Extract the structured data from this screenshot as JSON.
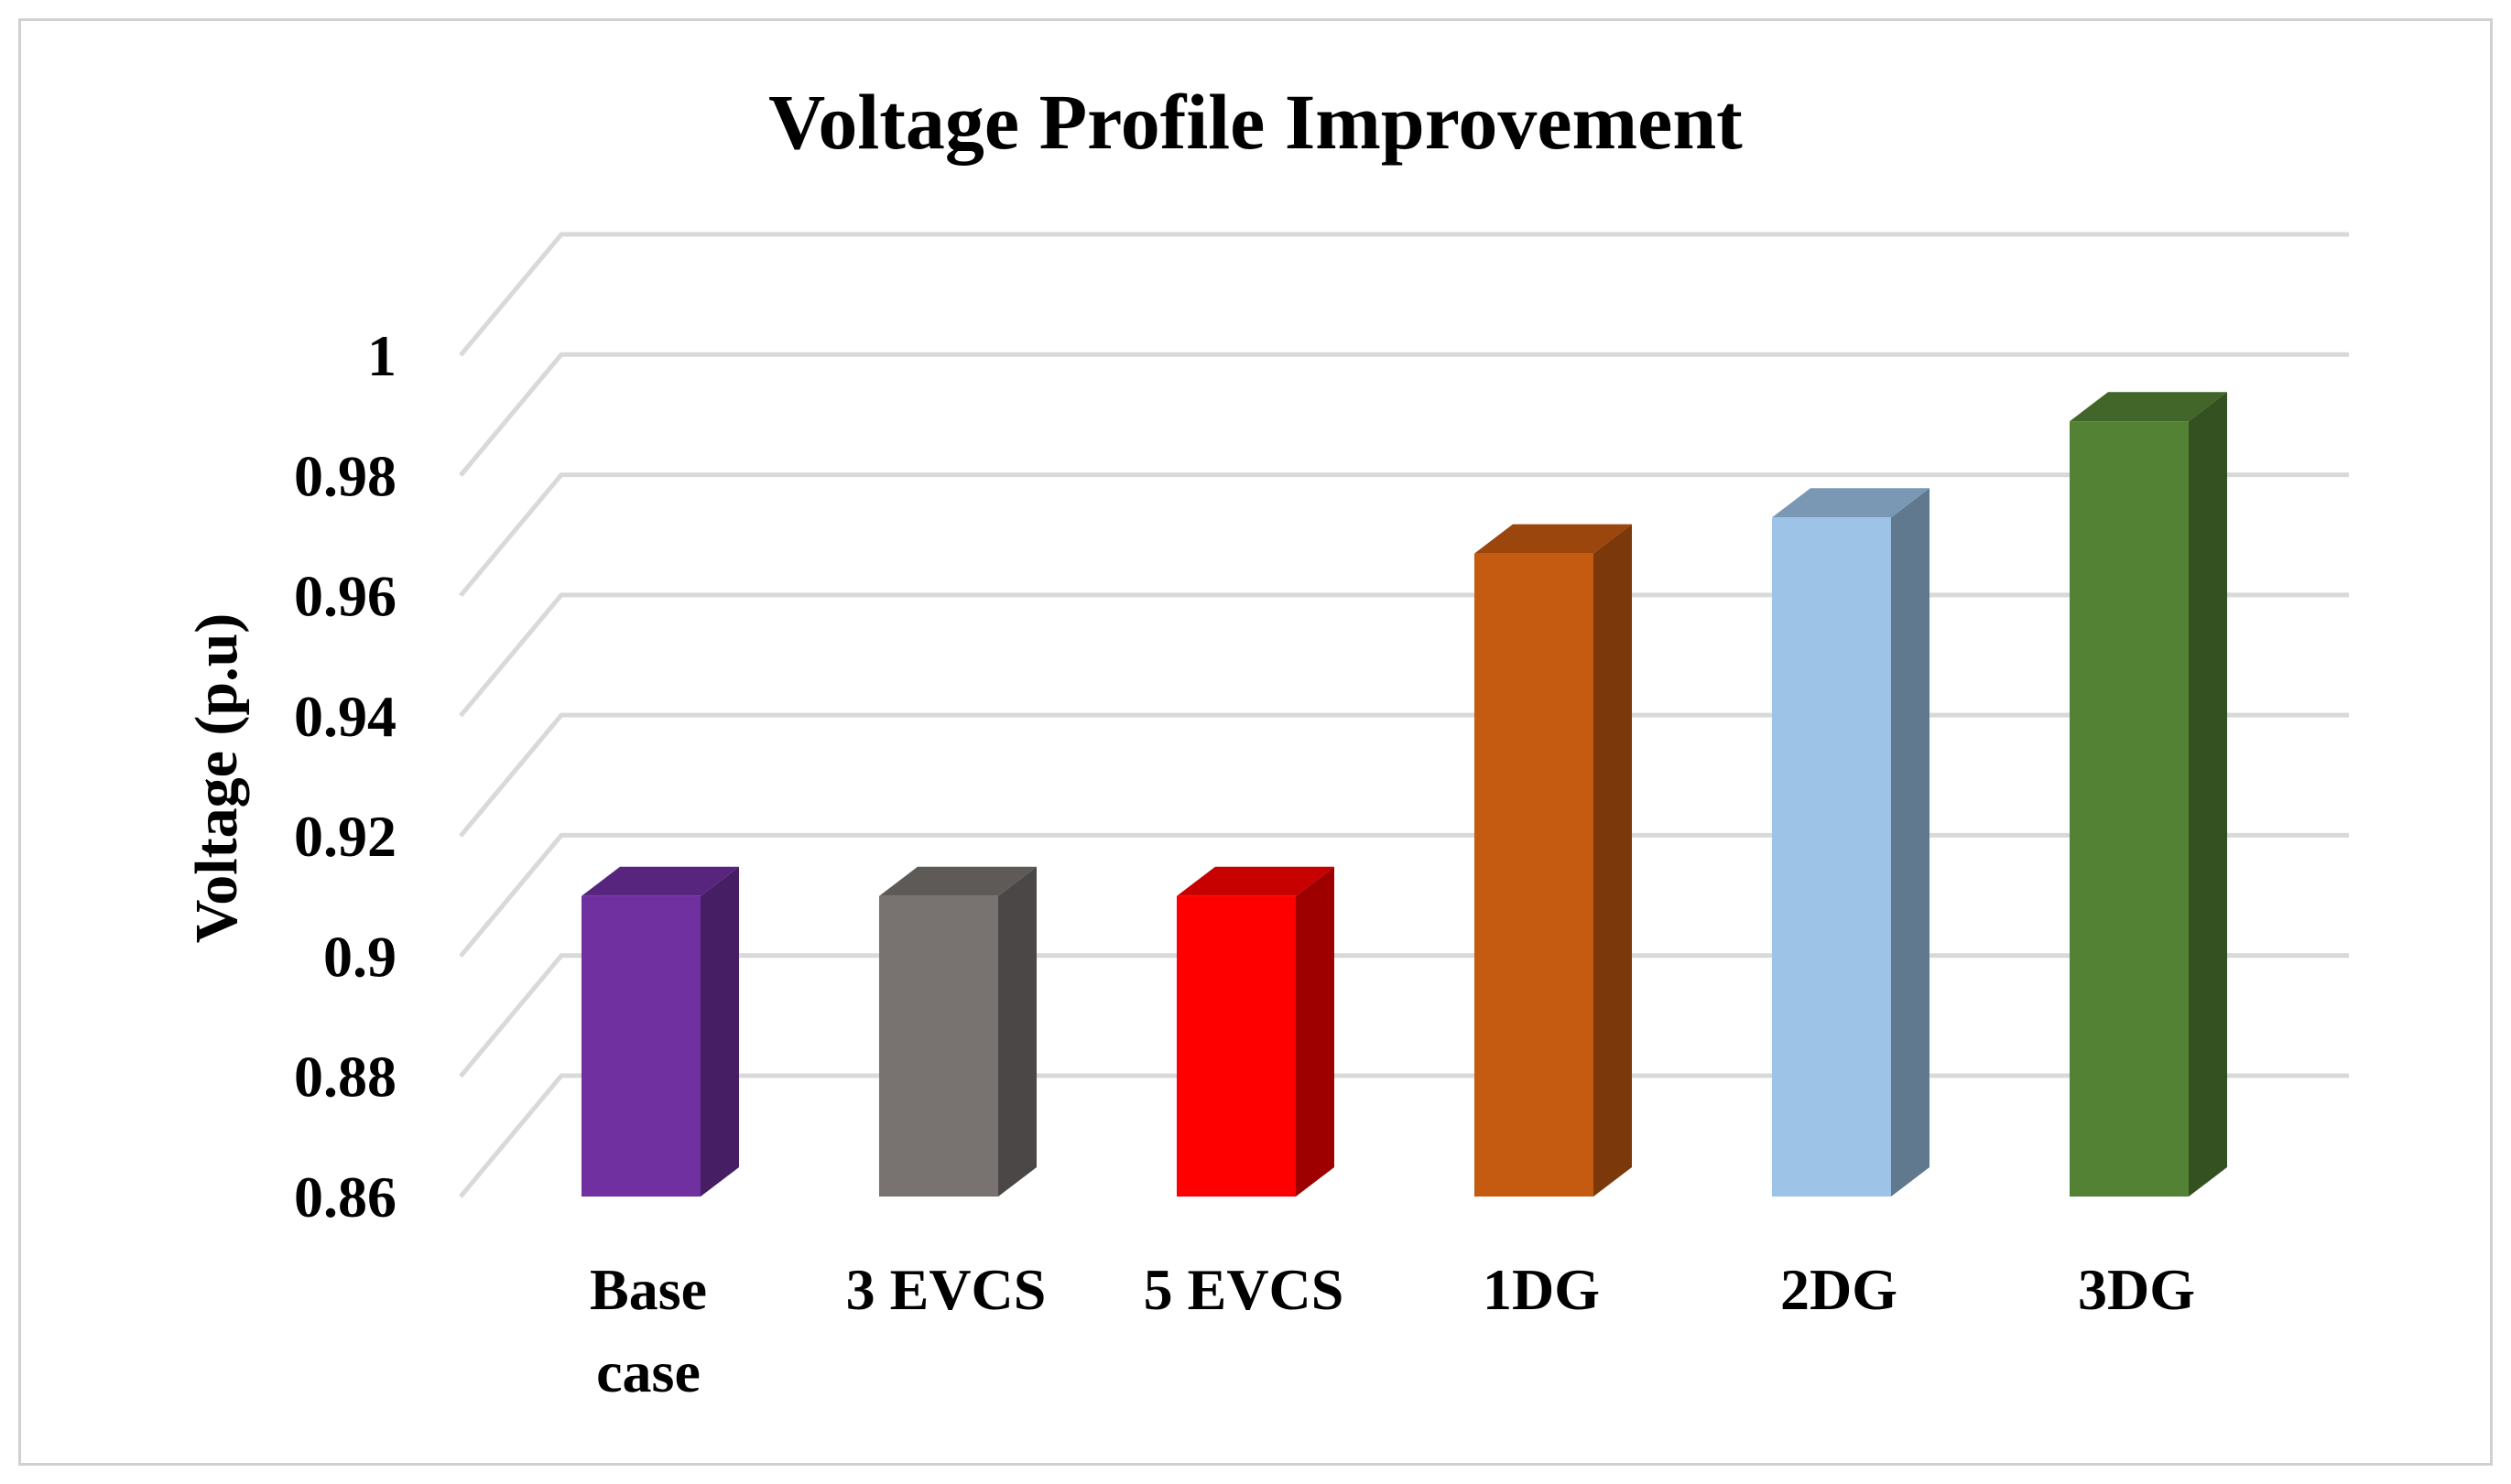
{
  "chart_data": {
    "type": "bar",
    "title": "Voltage Profile Improvement",
    "xlabel": "",
    "ylabel": "Voltage (p.u)",
    "ylim": [
      0.86,
      1.0
    ],
    "yticks": [
      "0.86",
      "0.88",
      "0.9",
      "0.92",
      "0.94",
      "0.96",
      "0.98",
      "1"
    ],
    "yticks_values": [
      0.86,
      0.88,
      0.9,
      0.92,
      0.94,
      0.96,
      0.98,
      1.0
    ],
    "grid": true,
    "style": "3d-column",
    "categories": [
      [
        "Base",
        "case"
      ],
      [
        "3 EVCS"
      ],
      [
        "5 EVCS"
      ],
      [
        "1DG"
      ],
      [
        "2DG"
      ],
      [
        "3DG"
      ]
    ],
    "values": [
      0.91,
      0.91,
      0.91,
      0.967,
      0.973,
      0.989
    ],
    "colors": [
      "#7030a0",
      "#787371",
      "#ff0000",
      "#c55a11",
      "#9dc3e6",
      "#548235"
    ]
  }
}
